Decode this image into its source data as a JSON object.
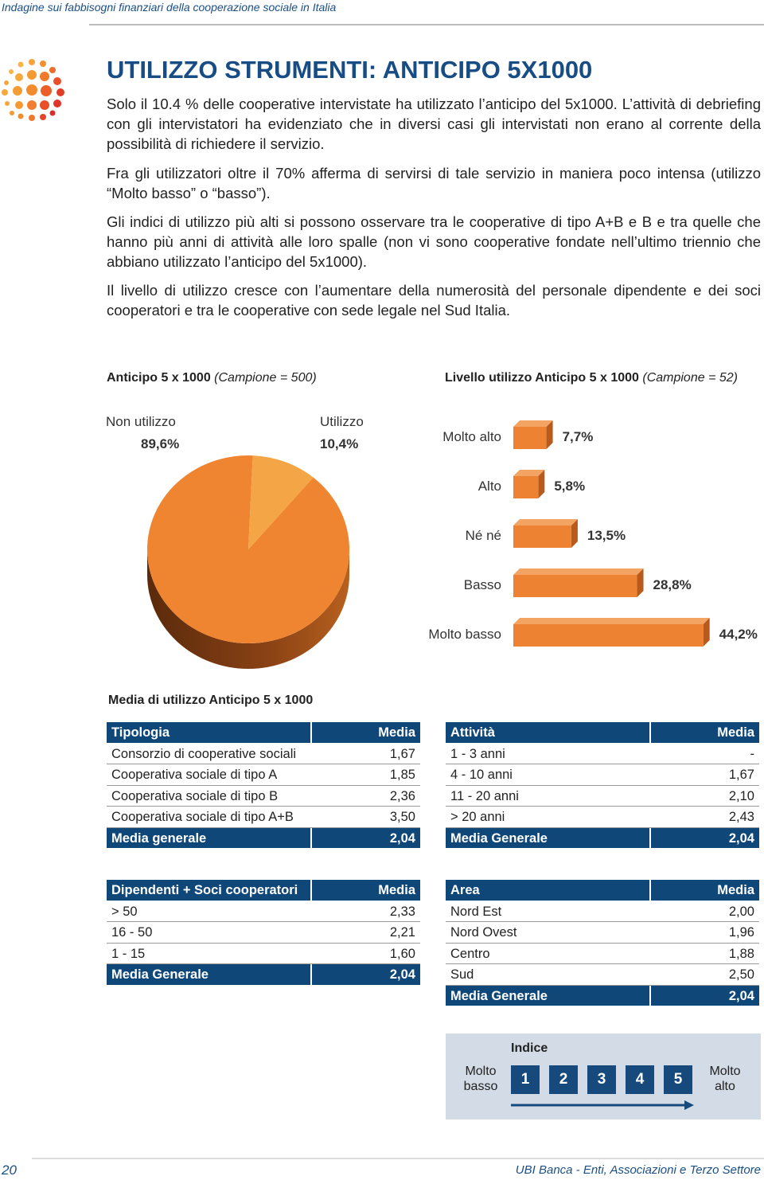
{
  "header": {
    "running_title": "Indagine sui fabbisogni finanziari della cooperazione sociale in Italia"
  },
  "title": "UTILIZZO STRUMENTI: ANTICIPO 5X1000",
  "paragraphs": [
    "Solo il 10.4 % delle cooperative intervistate ha utilizzato l’anticipo del 5x1000. L’attività di debriefing con gli intervistatori ha evidenziato che in diversi casi gli intervistati non erano al corrente della possibilità di richiedere il servizio.",
    "Fra gli utilizzatori oltre il 70% afferma di servirsi di tale servizio in maniera poco intensa (utilizzo “Molto basso” o “basso”).",
    "Gli indici di utilizzo più alti si possono osservare tra le cooperative di tipo A+B e B e tra quelle che hanno più anni di attività alle loro spalle (non vi sono cooperative fondate nell’ultimo triennio che abbiano utilizzato l’anticipo del 5x1000).",
    "Il livello di utilizzo cresce con l’aumentare della numerosità del personale dipendente e dei soci cooperatori e tra le cooperative con sede legale nel Sud Italia."
  ],
  "pie_chart": {
    "type": "pie",
    "title": "Anticipo 5 x 1000",
    "subtitle": "(Campione = 500)",
    "categories": [
      "Non utilizzo",
      "Utilizzo"
    ],
    "values": [
      89.6,
      10.4
    ],
    "value_labels": [
      "89,6%",
      "10,4%"
    ],
    "colors": [
      "#ef8531",
      "#f4a647"
    ]
  },
  "bar_chart": {
    "type": "bar",
    "title": "Livello utilizzo Anticipo 5 x 1000",
    "subtitle": "(Campione = 52)",
    "categories": [
      "Molto alto",
      "Alto",
      "Né né",
      "Basso",
      "Molto basso"
    ],
    "values": [
      7.7,
      5.8,
      13.5,
      28.8,
      44.2
    ],
    "value_labels": [
      "7,7%",
      "5,8%",
      "13,5%",
      "28,8%",
      "44,2%"
    ],
    "color": "#ec8232"
  },
  "tables_title": "Media di utilizzo Anticipo 5 x 1000",
  "tables": [
    {
      "header": [
        "Tipologia",
        "Media"
      ],
      "rows": [
        [
          "Consorzio di cooperative sociali",
          "1,67"
        ],
        [
          "Cooperativa sociale di tipo A",
          "1,85"
        ],
        [
          "Cooperativa sociale di tipo B",
          "2,36"
        ],
        [
          "Cooperativa sociale di tipo A+B",
          "3,50"
        ]
      ],
      "footer": [
        "Media generale",
        "2,04"
      ]
    },
    {
      "header": [
        "Attività",
        "Media"
      ],
      "rows": [
        [
          "1 - 3 anni",
          "-"
        ],
        [
          "4 - 10 anni",
          "1,67"
        ],
        [
          "11 - 20 anni",
          "2,10"
        ],
        [
          "> 20 anni",
          "2,43"
        ]
      ],
      "footer": [
        "Media Generale",
        "2,04"
      ]
    },
    {
      "header": [
        "Dipendenti + Soci cooperatori",
        "Media"
      ],
      "rows": [
        [
          "> 50",
          "2,33"
        ],
        [
          "16 - 50",
          "2,21"
        ],
        [
          "1 - 15",
          "1,60"
        ]
      ],
      "footer": [
        "Media Generale",
        "2,04"
      ]
    },
    {
      "header": [
        "Area",
        "Media"
      ],
      "rows": [
        [
          "Nord Est",
          "2,00"
        ],
        [
          "Nord Ovest",
          "1,96"
        ],
        [
          "Centro",
          "1,88"
        ],
        [
          "Sud",
          "2,50"
        ]
      ],
      "footer": [
        "Media Generale",
        "2,04"
      ]
    }
  ],
  "legend": {
    "title": "Indice",
    "low": "Molto basso",
    "high": "Molto alto",
    "steps": [
      "1",
      "2",
      "3",
      "4",
      "5"
    ]
  },
  "footer": {
    "page_number": "20",
    "publisher": "UBI Banca - Enti, Associazioni e Terzo Settore"
  }
}
